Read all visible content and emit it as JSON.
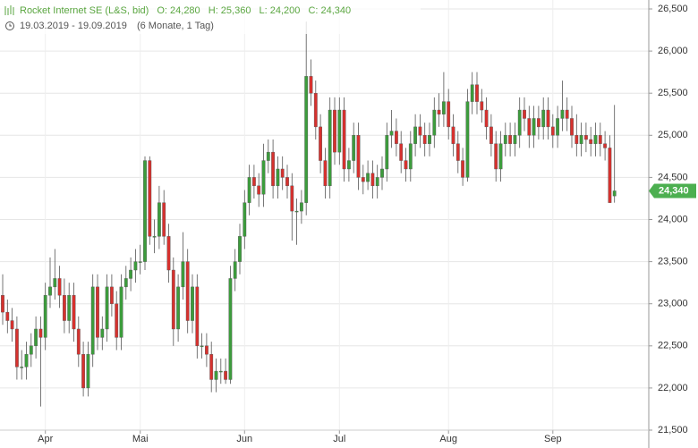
{
  "chart_data": {
    "type": "candlestick",
    "title": "Rocket Internet SE (L&S, bid)",
    "ohlc_labels": [
      "O: 24,280",
      "H: 25,360",
      "L: 24,200",
      "C: 24,340"
    ],
    "subtitle": "19.03.2019 - 19.09.2019",
    "period": "(6 Monate, 1 Tag)",
    "price_tag": "24,340",
    "up_color": "#3c9c3c",
    "down_color": "#d6312e",
    "grid": true,
    "ylim": [
      21500,
      26500
    ],
    "yticks": [
      {
        "value": 21500,
        "label": "21,500"
      },
      {
        "value": 22000,
        "label": "22,000"
      },
      {
        "value": 22500,
        "label": "22,500"
      },
      {
        "value": 23000,
        "label": "23,000"
      },
      {
        "value": 23500,
        "label": "23,500"
      },
      {
        "value": 24000,
        "label": "24,000"
      },
      {
        "value": 24500,
        "label": "24,500"
      },
      {
        "value": 25000,
        "label": "25,000"
      },
      {
        "value": 25500,
        "label": "25,500"
      },
      {
        "value": 26000,
        "label": "26,000"
      },
      {
        "value": 26500,
        "label": "26,500"
      }
    ],
    "categories": [
      null,
      null,
      null,
      null,
      null,
      null,
      null,
      null,
      null,
      "Apr",
      null,
      null,
      null,
      null,
      null,
      null,
      null,
      null,
      null,
      null,
      null,
      null,
      null,
      null,
      null,
      null,
      null,
      null,
      null,
      "Mai",
      null,
      null,
      null,
      null,
      null,
      null,
      null,
      null,
      null,
      null,
      null,
      null,
      null,
      null,
      null,
      null,
      null,
      null,
      null,
      null,
      null,
      "Jun",
      null,
      null,
      null,
      null,
      null,
      null,
      null,
      null,
      null,
      null,
      null,
      null,
      null,
      null,
      null,
      null,
      null,
      null,
      null,
      "Jul",
      null,
      null,
      null,
      null,
      null,
      null,
      null,
      null,
      null,
      null,
      null,
      null,
      null,
      null,
      null,
      null,
      null,
      null,
      null,
      null,
      null,
      null,
      "Aug",
      null,
      null,
      null,
      null,
      null,
      null,
      null,
      null,
      null,
      null,
      null,
      null,
      null,
      null,
      null,
      null,
      null,
      null,
      null,
      null,
      null,
      "Sep",
      null,
      null,
      null,
      null,
      null,
      null,
      null,
      null,
      null,
      null,
      null,
      null,
      null
    ],
    "open": [
      23100,
      22900,
      22800,
      22700,
      22250,
      22250,
      22400,
      22500,
      22700,
      22600,
      23100,
      23200,
      23300,
      23100,
      22800,
      23100,
      22700,
      22400,
      22000,
      22400,
      23200,
      22600,
      22700,
      23200,
      23000,
      22600,
      23200,
      23300,
      23400,
      23500,
      23500,
      24700,
      23800,
      23800,
      24200,
      23800,
      23400,
      22700,
      23200,
      23500,
      22800,
      23200,
      22500,
      22500,
      22400,
      22100,
      22200,
      22200,
      22100,
      23300,
      23500,
      23800,
      24200,
      24500,
      24400,
      24300,
      24700,
      24800,
      24400,
      24600,
      24500,
      24400,
      24100,
      24100,
      24200,
      25700,
      25500,
      25100,
      24700,
      24400,
      25300,
      24800,
      25300,
      24600,
      24700,
      25000,
      24500,
      24450,
      24550,
      24400,
      24500,
      24600,
      25000,
      25050,
      24900,
      24700,
      24600,
      24900,
      25100,
      25000,
      24900,
      25000,
      25300,
      25250,
      25400,
      25100,
      24900,
      24700,
      24500,
      25400,
      25600,
      25400,
      25300,
      25100,
      24900,
      24600,
      24900,
      25000,
      24900,
      25000,
      25300,
      25200,
      25000,
      25200,
      25100,
      25300,
      25100,
      25000,
      25200,
      25300,
      25200,
      25000,
      24900,
      25000,
      24950,
      24900,
      25000,
      24900,
      24850,
      24280
    ],
    "high": [
      23350,
      23050,
      22950,
      22850,
      22450,
      22550,
      22650,
      22850,
      22850,
      23250,
      23550,
      23650,
      23450,
      23300,
      23250,
      23250,
      22850,
      22550,
      22550,
      23350,
      23350,
      22850,
      23350,
      23350,
      23150,
      23350,
      23450,
      23550,
      23650,
      23700,
      24750,
      24750,
      24000,
      24400,
      24350,
      23950,
      23550,
      23350,
      23850,
      23650,
      23350,
      23350,
      22650,
      22650,
      22550,
      22350,
      22350,
      22350,
      23450,
      23650,
      23950,
      24350,
      24650,
      24650,
      24550,
      24900,
      24950,
      24950,
      24750,
      24750,
      24650,
      24550,
      24250,
      24350,
      26350,
      25900,
      25650,
      25250,
      24850,
      25450,
      25450,
      25450,
      25450,
      24850,
      25150,
      25150,
      24650,
      24700,
      24700,
      24650,
      24750,
      25150,
      25300,
      25200,
      25050,
      24850,
      25050,
      25250,
      25250,
      25150,
      25150,
      25450,
      25500,
      25750,
      25550,
      25250,
      25050,
      24850,
      25550,
      25750,
      25750,
      25550,
      25450,
      25250,
      25050,
      25050,
      25150,
      25150,
      25150,
      25450,
      25450,
      25350,
      25350,
      25350,
      25450,
      25450,
      25250,
      25350,
      25650,
      25450,
      25350,
      25250,
      25150,
      25150,
      25100,
      25150,
      25150,
      25050,
      25000,
      25360
    ],
    "low": [
      22750,
      22650,
      22550,
      22100,
      22100,
      22100,
      22250,
      22350,
      21780,
      22450,
      22950,
      23050,
      22950,
      22650,
      22650,
      22550,
      22250,
      21900,
      21900,
      22250,
      22450,
      22450,
      22550,
      22850,
      22450,
      22450,
      23050,
      23150,
      23250,
      23350,
      23400,
      23700,
      23600,
      23650,
      23700,
      23250,
      22500,
      22550,
      23050,
      22650,
      22650,
      22350,
      22350,
      22250,
      21950,
      21950,
      22050,
      22050,
      22050,
      23150,
      23350,
      23650,
      24050,
      24250,
      24150,
      24150,
      24550,
      24250,
      24250,
      24350,
      24250,
      23750,
      23700,
      23950,
      24050,
      25350,
      24950,
      24550,
      24250,
      24250,
      24650,
      24650,
      24450,
      24450,
      24550,
      24350,
      24300,
      24350,
      24250,
      24250,
      24350,
      24450,
      24850,
      24750,
      24550,
      24450,
      24450,
      24750,
      24850,
      24750,
      24750,
      24850,
      25100,
      25100,
      24950,
      24750,
      24550,
      24400,
      24450,
      25250,
      25250,
      25150,
      24950,
      24750,
      24450,
      24450,
      24750,
      24750,
      24750,
      24850,
      25050,
      24850,
      24850,
      24950,
      24950,
      24950,
      24850,
      24850,
      25050,
      25050,
      24850,
      24750,
      24750,
      24800,
      24750,
      24750,
      24750,
      24700,
      24200,
      24200
    ],
    "close": [
      22900,
      22800,
      22700,
      22250,
      22250,
      22400,
      22500,
      22700,
      22600,
      23100,
      23200,
      23300,
      23100,
      22800,
      23100,
      22700,
      22400,
      22000,
      22400,
      23200,
      22600,
      22700,
      23200,
      23000,
      22600,
      23200,
      23300,
      23400,
      23500,
      23500,
      24700,
      23800,
      23800,
      24200,
      23800,
      23400,
      22700,
      23200,
      23500,
      22800,
      23200,
      22500,
      22500,
      22400,
      22100,
      22200,
      22200,
      22100,
      23300,
      23500,
      23800,
      24200,
      24500,
      24400,
      24300,
      24700,
      24800,
      24400,
      24600,
      24500,
      24400,
      24100,
      24100,
      24200,
      25700,
      25500,
      25100,
      24700,
      24400,
      25300,
      24800,
      25300,
      24600,
      24700,
      25000,
      24500,
      24450,
      24550,
      24400,
      24500,
      24600,
      25000,
      25050,
      24900,
      24700,
      24600,
      24900,
      25100,
      25000,
      24900,
      25000,
      25300,
      25250,
      25400,
      25100,
      24900,
      24700,
      24500,
      25400,
      25600,
      25400,
      25300,
      25100,
      24900,
      24600,
      24900,
      25000,
      24900,
      25000,
      25300,
      25200,
      25000,
      25200,
      25100,
      25300,
      25100,
      25000,
      25200,
      25300,
      25200,
      25000,
      24900,
      25000,
      24950,
      24900,
      25000,
      24900,
      24850,
      24200,
      24340
    ]
  }
}
